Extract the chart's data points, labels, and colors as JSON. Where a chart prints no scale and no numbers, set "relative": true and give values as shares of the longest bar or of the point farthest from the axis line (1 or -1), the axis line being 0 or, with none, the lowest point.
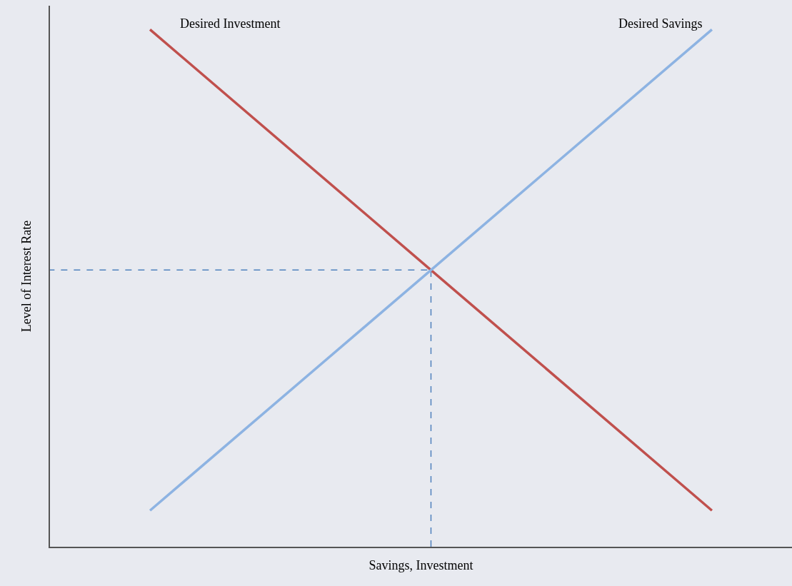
{
  "chart_data": {
    "type": "line",
    "relative": true,
    "xlabel": "Savings, Investment",
    "ylabel": "Level of Interest Rate",
    "categories": [
      null,
      null,
      null
    ],
    "series": [
      {
        "name": "Desired Investment",
        "color": "#c0504d",
        "values": [
          1,
          0.535,
          0.07
        ]
      },
      {
        "name": "Desired Savings",
        "color": "#8db3e2",
        "values": [
          0.07,
          0.535,
          1
        ]
      }
    ],
    "ref_lines": [
      {
        "axis": "y",
        "value": 0.535,
        "color": "#4f81bd",
        "line_style": "dashed"
      }
    ],
    "legend": false,
    "marker": "none",
    "line_style": "solid"
  }
}
